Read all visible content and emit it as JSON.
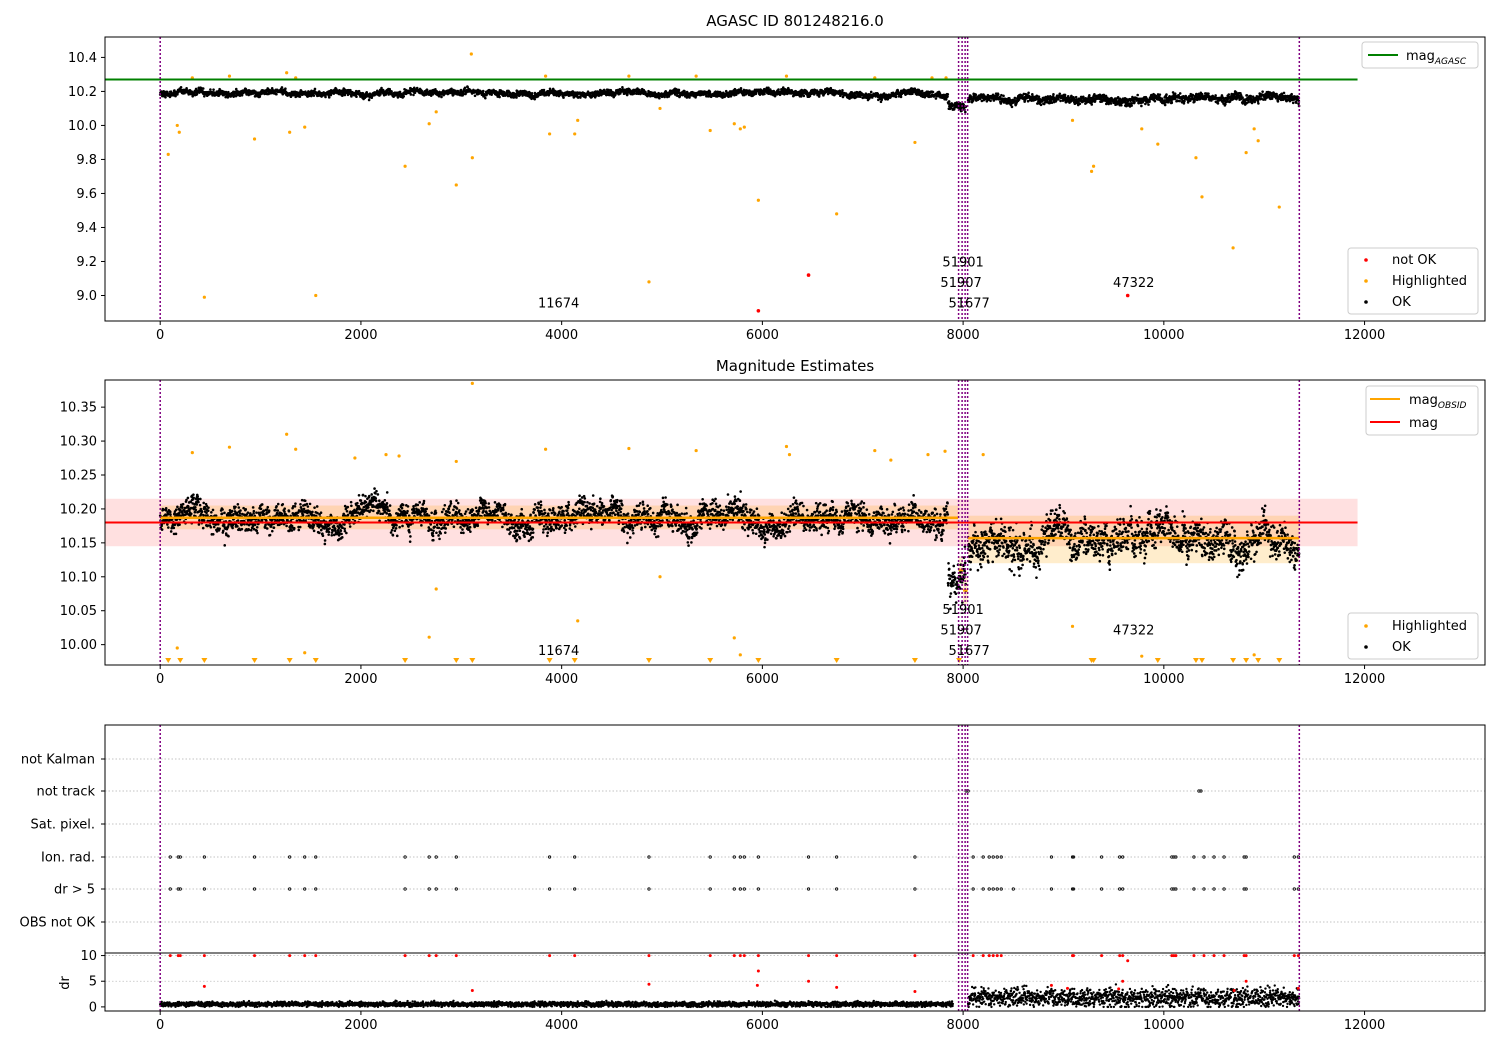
{
  "chart_data": [
    {
      "type": "scatter",
      "title": "AGASC ID 801248216.0",
      "xlim": [
        -550,
        13200
      ],
      "ylim": [
        8.85,
        10.52
      ],
      "xticks": [
        0,
        2000,
        4000,
        6000,
        8000,
        10000,
        12000
      ],
      "yticks": [
        9.0,
        9.2,
        9.4,
        9.6,
        9.8,
        10.0,
        10.2,
        10.4
      ],
      "legend_upper": {
        "entries": [
          "mag_AGASC"
        ],
        "placement": "top-right"
      },
      "legend_lower": {
        "entries": [
          "not OK",
          "Highlighted",
          "OK"
        ],
        "placement": "bottom-right"
      },
      "hlines": [
        {
          "name": "mag_AGASC",
          "y": 10.27,
          "x": [
            -550,
            11930
          ],
          "color": "#008000"
        }
      ],
      "observation_boundaries": [
        0,
        7955,
        7990,
        8020,
        8045,
        11350
      ],
      "obsid_labels": [
        {
          "text": "11674",
          "x": 3970,
          "y": 8.93
        },
        {
          "text": "51901",
          "x": 8000,
          "y": 9.17
        },
        {
          "text": "51907",
          "x": 7980,
          "y": 9.05
        },
        {
          "text": "51677",
          "x": 8060,
          "y": 8.93
        },
        {
          "text": "47322",
          "x": 9700,
          "y": 9.05
        }
      ],
      "ok_series": [
        {
          "x": [
            0,
            7850
          ],
          "base": 10.19,
          "spread": 0.025
        },
        {
          "x": [
            7850,
            8030
          ],
          "base": 10.12,
          "spread": 0.04
        },
        {
          "x": [
            8050,
            11350
          ],
          "base": 10.16,
          "spread": 0.035
        }
      ],
      "highlighted_points": [
        [
          80,
          9.83
        ],
        [
          170,
          10.0
        ],
        [
          190,
          9.96
        ],
        [
          320,
          10.28
        ],
        [
          440,
          8.99
        ],
        [
          690,
          10.29
        ],
        [
          940,
          9.92
        ],
        [
          1260,
          10.31
        ],
        [
          1290,
          9.96
        ],
        [
          1350,
          10.28
        ],
        [
          1440,
          9.99
        ],
        [
          1550,
          9.0
        ],
        [
          2440,
          9.76
        ],
        [
          2680,
          10.01
        ],
        [
          2750,
          10.08
        ],
        [
          2950,
          9.65
        ],
        [
          3100,
          10.42
        ],
        [
          3110,
          9.81
        ],
        [
          3840,
          10.29
        ],
        [
          3880,
          9.95
        ],
        [
          4130,
          9.95
        ],
        [
          4160,
          10.03
        ],
        [
          4670,
          10.29
        ],
        [
          4870,
          9.08
        ],
        [
          4980,
          10.1
        ],
        [
          5340,
          10.29
        ],
        [
          5480,
          9.97
        ],
        [
          5720,
          10.01
        ],
        [
          5780,
          9.98
        ],
        [
          5820,
          9.99
        ],
        [
          5960,
          9.56
        ],
        [
          6240,
          10.29
        ],
        [
          6740,
          9.48
        ],
        [
          7120,
          10.28
        ],
        [
          7520,
          9.9
        ],
        [
          7690,
          10.28
        ],
        [
          7830,
          10.28
        ],
        [
          9090,
          10.03
        ],
        [
          9280,
          9.73
        ],
        [
          9300,
          9.76
        ],
        [
          9780,
          9.98
        ],
        [
          9940,
          9.89
        ],
        [
          10320,
          9.81
        ],
        [
          10380,
          9.58
        ],
        [
          10690,
          9.28
        ],
        [
          10820,
          9.84
        ],
        [
          10900,
          9.98
        ],
        [
          10940,
          9.91
        ],
        [
          11150,
          9.52
        ]
      ],
      "not_ok_points": [
        [
          5960,
          8.91
        ],
        [
          6460,
          9.12
        ],
        [
          9640,
          9.0
        ]
      ]
    },
    {
      "type": "scatter",
      "title": "Magnitude Estimates",
      "xlim": [
        -550,
        13200
      ],
      "ylim": [
        9.97,
        10.39
      ],
      "xticks": [
        0,
        2000,
        4000,
        6000,
        8000,
        10000,
        12000
      ],
      "yticks": [
        10.0,
        10.05,
        10.1,
        10.15,
        10.2,
        10.25,
        10.3,
        10.35
      ],
      "legend_upper": {
        "entries": [
          "mag_OBSID",
          "mag"
        ],
        "placement": "top-right"
      },
      "legend_lower": {
        "entries": [
          "Highlighted",
          "OK"
        ],
        "placement": "bottom-right"
      },
      "mag_line": {
        "name": "mag",
        "y": 10.18,
        "band": [
          10.145,
          10.215
        ],
        "x": [
          -550,
          11930
        ],
        "color": "#ff0000"
      },
      "obsid_segments": [
        {
          "x": [
            0,
            7950
          ],
          "y": 10.187,
          "band": [
            10.17,
            10.205
          ]
        },
        {
          "x": [
            7955,
            8000
          ],
          "y": 10.11,
          "band": [
            10.09,
            10.13
          ]
        },
        {
          "x": [
            8000,
            8045
          ],
          "y": 10.08,
          "band": [
            10.06,
            10.1
          ]
        },
        {
          "x": [
            8050,
            11350
          ],
          "y": 10.157,
          "band": [
            10.12,
            10.19
          ]
        }
      ],
      "observation_boundaries": [
        0,
        7955,
        7990,
        8020,
        8045,
        11350
      ],
      "obsid_labels": [
        {
          "text": "11674",
          "x": 3970,
          "y": 9.985
        },
        {
          "text": "51901",
          "x": 8000,
          "y": 10.045
        },
        {
          "text": "51907",
          "x": 7980,
          "y": 10.015
        },
        {
          "text": "51677",
          "x": 8060,
          "y": 9.985
        },
        {
          "text": "47322",
          "x": 9700,
          "y": 10.015
        }
      ],
      "ok_series": [
        {
          "x": [
            0,
            7850
          ],
          "base": 10.187,
          "spread": 0.028
        },
        {
          "x": [
            7850,
            8030
          ],
          "base": 10.1,
          "spread": 0.04
        },
        {
          "x": [
            8050,
            11350
          ],
          "base": 10.155,
          "spread": 0.04
        }
      ],
      "highlighted_points": [
        [
          170,
          9.995
        ],
        [
          320,
          10.283
        ],
        [
          690,
          10.291
        ],
        [
          1260,
          10.31
        ],
        [
          1350,
          10.288
        ],
        [
          1440,
          9.988
        ],
        [
          1940,
          10.275
        ],
        [
          2250,
          10.28
        ],
        [
          2380,
          10.278
        ],
        [
          2680,
          10.011
        ],
        [
          2750,
          10.082
        ],
        [
          2950,
          10.27
        ],
        [
          3110,
          10.385
        ],
        [
          3840,
          10.288
        ],
        [
          4160,
          10.035
        ],
        [
          4670,
          10.289
        ],
        [
          4980,
          10.1
        ],
        [
          5340,
          10.286
        ],
        [
          5720,
          10.01
        ],
        [
          5780,
          9.985
        ],
        [
          6240,
          10.292
        ],
        [
          6270,
          10.28
        ],
        [
          7120,
          10.286
        ],
        [
          7280,
          10.272
        ],
        [
          7650,
          10.28
        ],
        [
          7820,
          10.285
        ],
        [
          8200,
          10.28
        ],
        [
          9090,
          10.027
        ],
        [
          9780,
          9.983
        ],
        [
          10900,
          9.985
        ]
      ],
      "clipped_markers_x": [
        80,
        200,
        440,
        940,
        1290,
        1550,
        2440,
        2950,
        3110,
        3880,
        4130,
        4870,
        5480,
        5960,
        6740,
        7520,
        7960,
        9280,
        9300,
        9940,
        10320,
        10380,
        10690,
        10820,
        10940,
        11150
      ]
    },
    {
      "type": "scatter",
      "title": "",
      "xlim": [
        -550,
        13200
      ],
      "xticks": [
        0,
        2000,
        4000,
        6000,
        8000,
        10000,
        12000
      ],
      "flag_rows": [
        "not Kalman",
        "not track",
        "Sat. pixel.",
        "Ion. rad.",
        "dr > 5",
        "OBS not OK"
      ],
      "flag_points": {
        "not track": [
          8030,
          8050,
          10350,
          10370
        ],
        "Ion. rad.": [
          100,
          180,
          200,
          440,
          940,
          1290,
          1440,
          1550,
          2440,
          2680,
          2750,
          2950,
          3880,
          4130,
          4870,
          5480,
          5720,
          5780,
          5820,
          5960,
          6460,
          6740,
          7520,
          8100,
          8200,
          8260,
          8300,
          8340,
          8380,
          8880,
          9090,
          9100,
          9380,
          9560,
          9590,
          10080,
          10100,
          10120,
          10300,
          10400,
          10500,
          10600,
          10800,
          10820,
          11300,
          11340
        ],
        "dr > 5": [
          100,
          180,
          200,
          440,
          940,
          1290,
          1440,
          1550,
          2440,
          2680,
          2750,
          2950,
          3880,
          4130,
          4870,
          5480,
          5720,
          5780,
          5820,
          5960,
          6460,
          6740,
          7520,
          8100,
          8200,
          8260,
          8300,
          8340,
          8380,
          8500,
          8880,
          9090,
          9100,
          9380,
          9560,
          9590,
          10080,
          10100,
          10120,
          10300,
          10400,
          10500,
          10600,
          10800,
          10820,
          11300,
          11340
        ]
      },
      "dr_axis": {
        "ylabel": "dr",
        "ylim": [
          -0.8,
          10.5
        ],
        "yticks": [
          0,
          5,
          10
        ]
      },
      "dr_base": [
        {
          "x": [
            0,
            7900
          ],
          "level": 0.5,
          "spread": 0.35
        },
        {
          "x": [
            8050,
            11350
          ],
          "level": 1.8,
          "spread": 1.3
        }
      ],
      "dr_high_points": [
        [
          100,
          10
        ],
        [
          180,
          10
        ],
        [
          200,
          10
        ],
        [
          440,
          10
        ],
        [
          940,
          10
        ],
        [
          1290,
          10
        ],
        [
          1440,
          10
        ],
        [
          1550,
          10
        ],
        [
          2440,
          10
        ],
        [
          2680,
          10
        ],
        [
          2750,
          10
        ],
        [
          2950,
          10
        ],
        [
          3880,
          10
        ],
        [
          4130,
          10
        ],
        [
          4870,
          10
        ],
        [
          5480,
          10
        ],
        [
          5720,
          10
        ],
        [
          5780,
          10
        ],
        [
          5820,
          10
        ],
        [
          5960,
          10
        ],
        [
          6460,
          10
        ],
        [
          6740,
          10
        ],
        [
          7520,
          10
        ],
        [
          8100,
          10
        ],
        [
          8200,
          10
        ],
        [
          8260,
          10
        ],
        [
          8300,
          10
        ],
        [
          8340,
          10
        ],
        [
          8380,
          10
        ],
        [
          9090,
          10
        ],
        [
          9100,
          10
        ],
        [
          9380,
          10
        ],
        [
          9560,
          10
        ],
        [
          9590,
          10
        ],
        [
          10080,
          10
        ],
        [
          10100,
          10
        ],
        [
          10120,
          10
        ],
        [
          10300,
          10
        ],
        [
          10400,
          10
        ],
        [
          10500,
          10
        ],
        [
          10600,
          10
        ],
        [
          10800,
          10
        ],
        [
          10820,
          10
        ],
        [
          11300,
          10
        ],
        [
          11340,
          10
        ],
        [
          5960,
          7
        ],
        [
          5950,
          4.2
        ],
        [
          6460,
          5
        ],
        [
          6740,
          3.8
        ],
        [
          440,
          4
        ],
        [
          3110,
          3.2
        ],
        [
          4870,
          4.4
        ],
        [
          7520,
          3
        ],
        [
          8880,
          4.2
        ],
        [
          9040,
          3.6
        ],
        [
          9590,
          5
        ],
        [
          9640,
          9
        ],
        [
          10820,
          5
        ],
        [
          11340,
          3.6
        ],
        [
          9550,
          3.5
        ],
        [
          10700,
          3.2
        ]
      ],
      "observation_boundaries": [
        0,
        7955,
        7990,
        8020,
        8045,
        11350
      ]
    }
  ]
}
